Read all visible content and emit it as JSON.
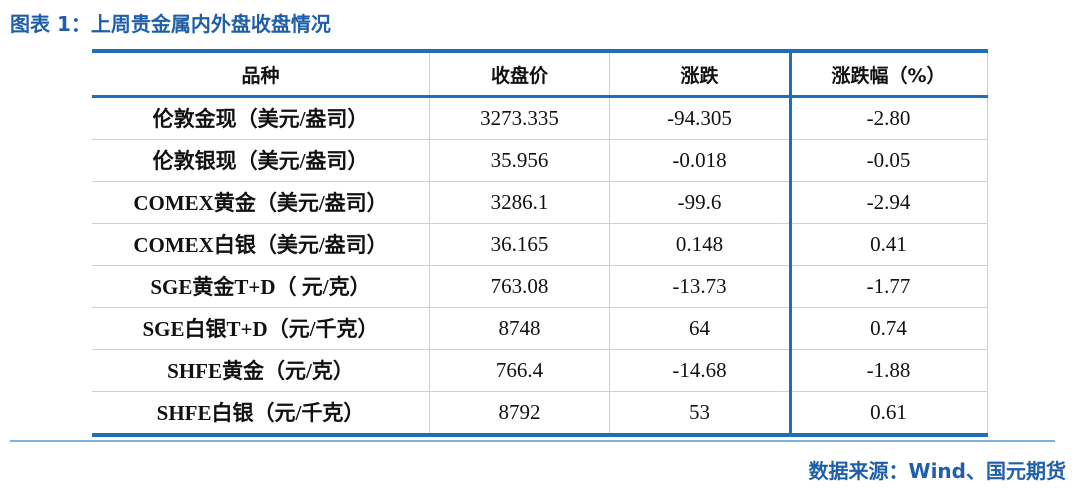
{
  "header": {
    "title": "图表 1：上周贵金属内外盘收盘情况"
  },
  "table": {
    "columns": [
      "品种",
      "收盘价",
      "涨跌",
      "涨跌幅（%）"
    ],
    "rows": [
      [
        "伦敦金现（美元/盎司）",
        "3273.335",
        "-94.305",
        "-2.80"
      ],
      [
        "伦敦银现（美元/盎司）",
        "35.956",
        "-0.018",
        "-0.05"
      ],
      [
        "COMEX黄金（美元/盎司）",
        "3286.1",
        "-99.6",
        "-2.94"
      ],
      [
        "COMEX白银（美元/盎司）",
        "36.165",
        "0.148",
        "0.41"
      ],
      [
        "SGE黄金T+D（ 元/克）",
        "763.08",
        "-13.73",
        "-1.77"
      ],
      [
        "SGE白银T+D（元/千克）",
        "8748",
        "64",
        "0.74"
      ],
      [
        "SHFE黄金（元/克）",
        "766.4",
        "-14.68",
        "-1.88"
      ],
      [
        "SHFE白银（元/千克）",
        "8792",
        "53",
        "0.61"
      ]
    ]
  },
  "footer": {
    "source": "数据来源：Wind、国元期货"
  }
}
